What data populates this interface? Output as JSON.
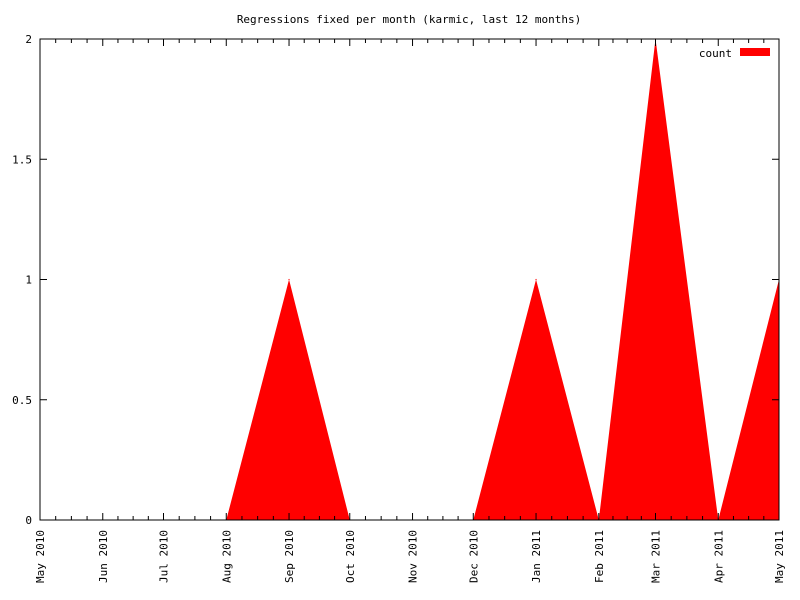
{
  "chart_data": {
    "type": "area",
    "title": "Regressions fixed per month (karmic, last 12 months)",
    "xlabel": "",
    "ylabel": "",
    "x_ticks": [
      "May 2010",
      "Jun 2010",
      "Jul 2010",
      "Aug 2010",
      "Sep 2010",
      "Oct 2010",
      "Nov 2010",
      "Dec 2010",
      "Jan 2011",
      "Feb 2011",
      "Mar 2011",
      "Apr 2011",
      "May 2011"
    ],
    "y_ticks": [
      "0",
      "0.5",
      "1",
      "1.5",
      "2"
    ],
    "ylim": [
      0,
      2
    ],
    "xlim": [
      "2010-05-01",
      "2011-05-01"
    ],
    "grid": false,
    "legend_position": "top-right",
    "series": [
      {
        "name": "count",
        "color": "#ff0000",
        "points": [
          {
            "x": "2010-05-01",
            "y": 0
          },
          {
            "x": "2010-06-01",
            "y": 0
          },
          {
            "x": "2010-07-01",
            "y": 0
          },
          {
            "x": "2010-08-01",
            "y": 0
          },
          {
            "x": "2010-09-01",
            "y": 1
          },
          {
            "x": "2010-10-01",
            "y": 0
          },
          {
            "x": "2010-11-01",
            "y": 0
          },
          {
            "x": "2010-12-01",
            "y": 0
          },
          {
            "x": "2011-01-01",
            "y": 1
          },
          {
            "x": "2011-02-01",
            "y": 0
          },
          {
            "x": "2011-03-01",
            "y": 2
          },
          {
            "x": "2011-04-01",
            "y": 0
          },
          {
            "x": "2011-05-01",
            "y": 1
          }
        ]
      }
    ]
  }
}
